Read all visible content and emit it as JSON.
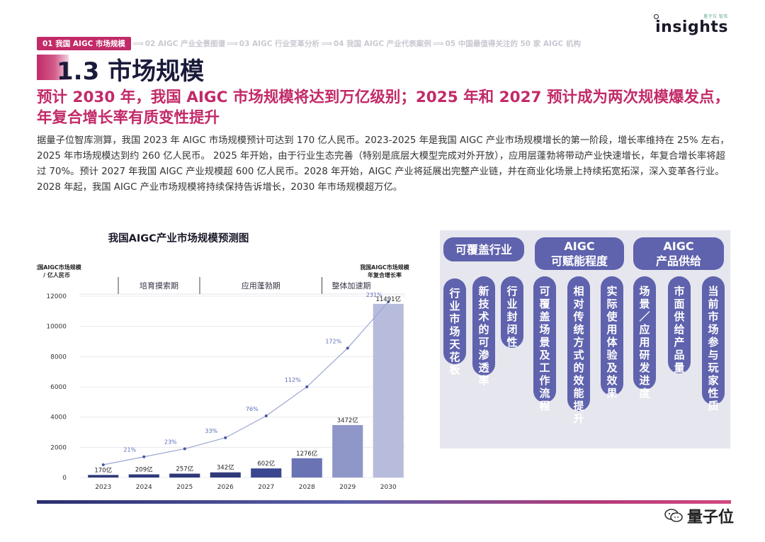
{
  "logo": {
    "small": "量子位 智库",
    "text": "insights"
  },
  "breadcrumb": {
    "active": "01 我国 AIGC 市场规模",
    "items": [
      "02 AIGC 产业全景图谱",
      "03 AIGC 行业变革分析",
      "04 我国 AIGC 产业代表案例",
      "05 中国最值得关注的 50 家 AIGC 机构"
    ]
  },
  "section_title": "1.3 市场规模",
  "headline": "预计 2030 年，我国 AIGC 市场规模将达到万亿级别；2025 年和 2027 预计成为两次规模爆发点，年复合增长率有质变性提升",
  "body": "据量子位智库测算，我国 2023 年 AIGC 市场规模预计可达到 170 亿人民币。2023-2025 年是我国 AIGC 产业市场规模增长的第一阶段，增长率维持在 25% 左右，2025 年市场规模达到约 260 亿人民币。 2025 年开始，由于行业生态完善（特别是底层大模型完成对外开放），应用层蓬勃将带动产业快速增长，年复合增长率将超过 70%。预计 2027 年我国 AIGC 产业规模超 600 亿人民币。2028 年开始，AIGC 产业将延展出完整产业链，并在商业化场景上持续拓宽拓深，深入变革各行业。2028 年起，我国 AIGC 产业市场规模将持续保持告诉增长，2030 年市场规模超万亿。",
  "chart_data": {
    "type": "bar",
    "title": "我国AIGC产业市场规模预测图",
    "ylabel_line1": "我国AIGC市场规模",
    "ylabel_line2": "/ 亿人民币",
    "y2label_line1": "我国AIGC市场规模",
    "y2label_line2": "年复合增长率",
    "categories": [
      "2023",
      "2024",
      "2025",
      "2026",
      "2027",
      "2028",
      "2029",
      "2030"
    ],
    "values": [
      170,
      209,
      257,
      342,
      602,
      1276,
      3472,
      11491
    ],
    "value_labels": [
      "170亿",
      "209亿",
      "257亿",
      "342亿",
      "602亿",
      "1276亿",
      "3472亿",
      "11491亿"
    ],
    "growth_rates": [
      null,
      21,
      23,
      33,
      76,
      112,
      172,
      231
    ],
    "growth_labels": [
      "",
      "21%",
      "23%",
      "33%",
      "76%",
      "112%",
      "172%",
      "231%"
    ],
    "ylim": [
      0,
      12000
    ],
    "yticks": [
      0,
      2000,
      4000,
      6000,
      8000,
      10000,
      12000
    ],
    "phases": [
      "培育摸索期",
      "应用蓬勃期",
      "整体加速期"
    ],
    "bar_colors": [
      "#2f3a7a",
      "#2f3a7a",
      "#2f3a7a",
      "#2f3a7a",
      "#3a4690",
      "#6a74b4",
      "#8e97c8",
      "#b7bcdc"
    ],
    "line_color": "#9aa6d2"
  },
  "panel": {
    "heads": [
      "可覆盖行业",
      "AIGC\n可赋能程度",
      "AIGC\n产品供给"
    ],
    "head1": "可覆盖行业",
    "head2_l1": "AIGC",
    "head2_l2": "可赋能程度",
    "head3_l1": "AIGC",
    "head3_l2": "产品供给",
    "col1": [
      "行业市场天花板",
      "新技术的可渗透率",
      "行业封闭性"
    ],
    "col2": [
      "可覆盖场景及工作流程",
      "相对传统方式的效能提升",
      "实际使用体验及效果"
    ],
    "col3": [
      "场景／应用研发进度",
      "市面供给产品量",
      "当前市场参与玩家性质"
    ]
  },
  "footer": {
    "brand": "量子位"
  },
  "colors": {
    "accent": "#c22a68",
    "navy": "#5f62ad"
  }
}
